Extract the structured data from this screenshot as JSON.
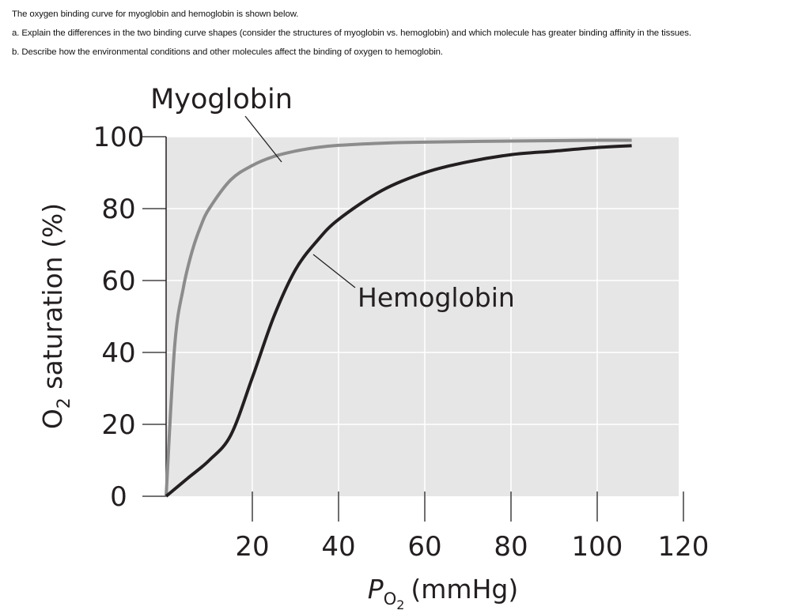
{
  "question": {
    "intro": "The oxygen binding curve for myoglobin and hemoglobin is shown below.",
    "part_a": "a. Explain the differences in the two binding curve shapes (consider the structures of myoglobin vs. hemoglobin) and which molecule has greater binding affinity in the tissues.",
    "part_b": "b. Describe how the environmental conditions and other molecules affect the binding of oxygen to hemoglobin."
  },
  "chart_data": {
    "type": "line",
    "title": "",
    "xlabel": "PO2 (mmHg)",
    "xlabel_main": "P",
    "xlabel_sub": "O",
    "xlabel_subsub": "2",
    "xlabel_unit": "(mmHg)",
    "ylabel": "O2 saturation (%)",
    "ylabel_main": "O",
    "ylabel_sub": "2",
    "ylabel_rest": " saturation (%)",
    "xlim": [
      0,
      120
    ],
    "ylim": [
      0,
      100
    ],
    "xticks": [
      20,
      40,
      60,
      80,
      100,
      120
    ],
    "yticks": [
      0,
      20,
      40,
      60,
      80,
      100
    ],
    "grid": true,
    "background": "#e6e6e6",
    "series": [
      {
        "name": "Myoglobin",
        "color": "#8c8c8c",
        "x": [
          0,
          2,
          4,
          6,
          8,
          10,
          15,
          20,
          25,
          30,
          35,
          40,
          50,
          60,
          80,
          100,
          108
        ],
        "y": [
          0,
          42,
          58,
          68,
          75,
          80,
          88,
          92,
          94.5,
          96,
          97,
          97.6,
          98.2,
          98.5,
          98.8,
          99,
          99
        ]
      },
      {
        "name": "Hemoglobin",
        "color": "#231f20",
        "x": [
          0,
          5,
          10,
          15,
          20,
          25,
          30,
          35,
          40,
          50,
          60,
          70,
          80,
          90,
          100,
          108
        ],
        "y": [
          0,
          5,
          10,
          17,
          33,
          50,
          63,
          71,
          77,
          85,
          90,
          93,
          95,
          96,
          97,
          97.5
        ]
      }
    ],
    "annotations": [
      "Myoglobin",
      "Hemoglobin"
    ]
  }
}
